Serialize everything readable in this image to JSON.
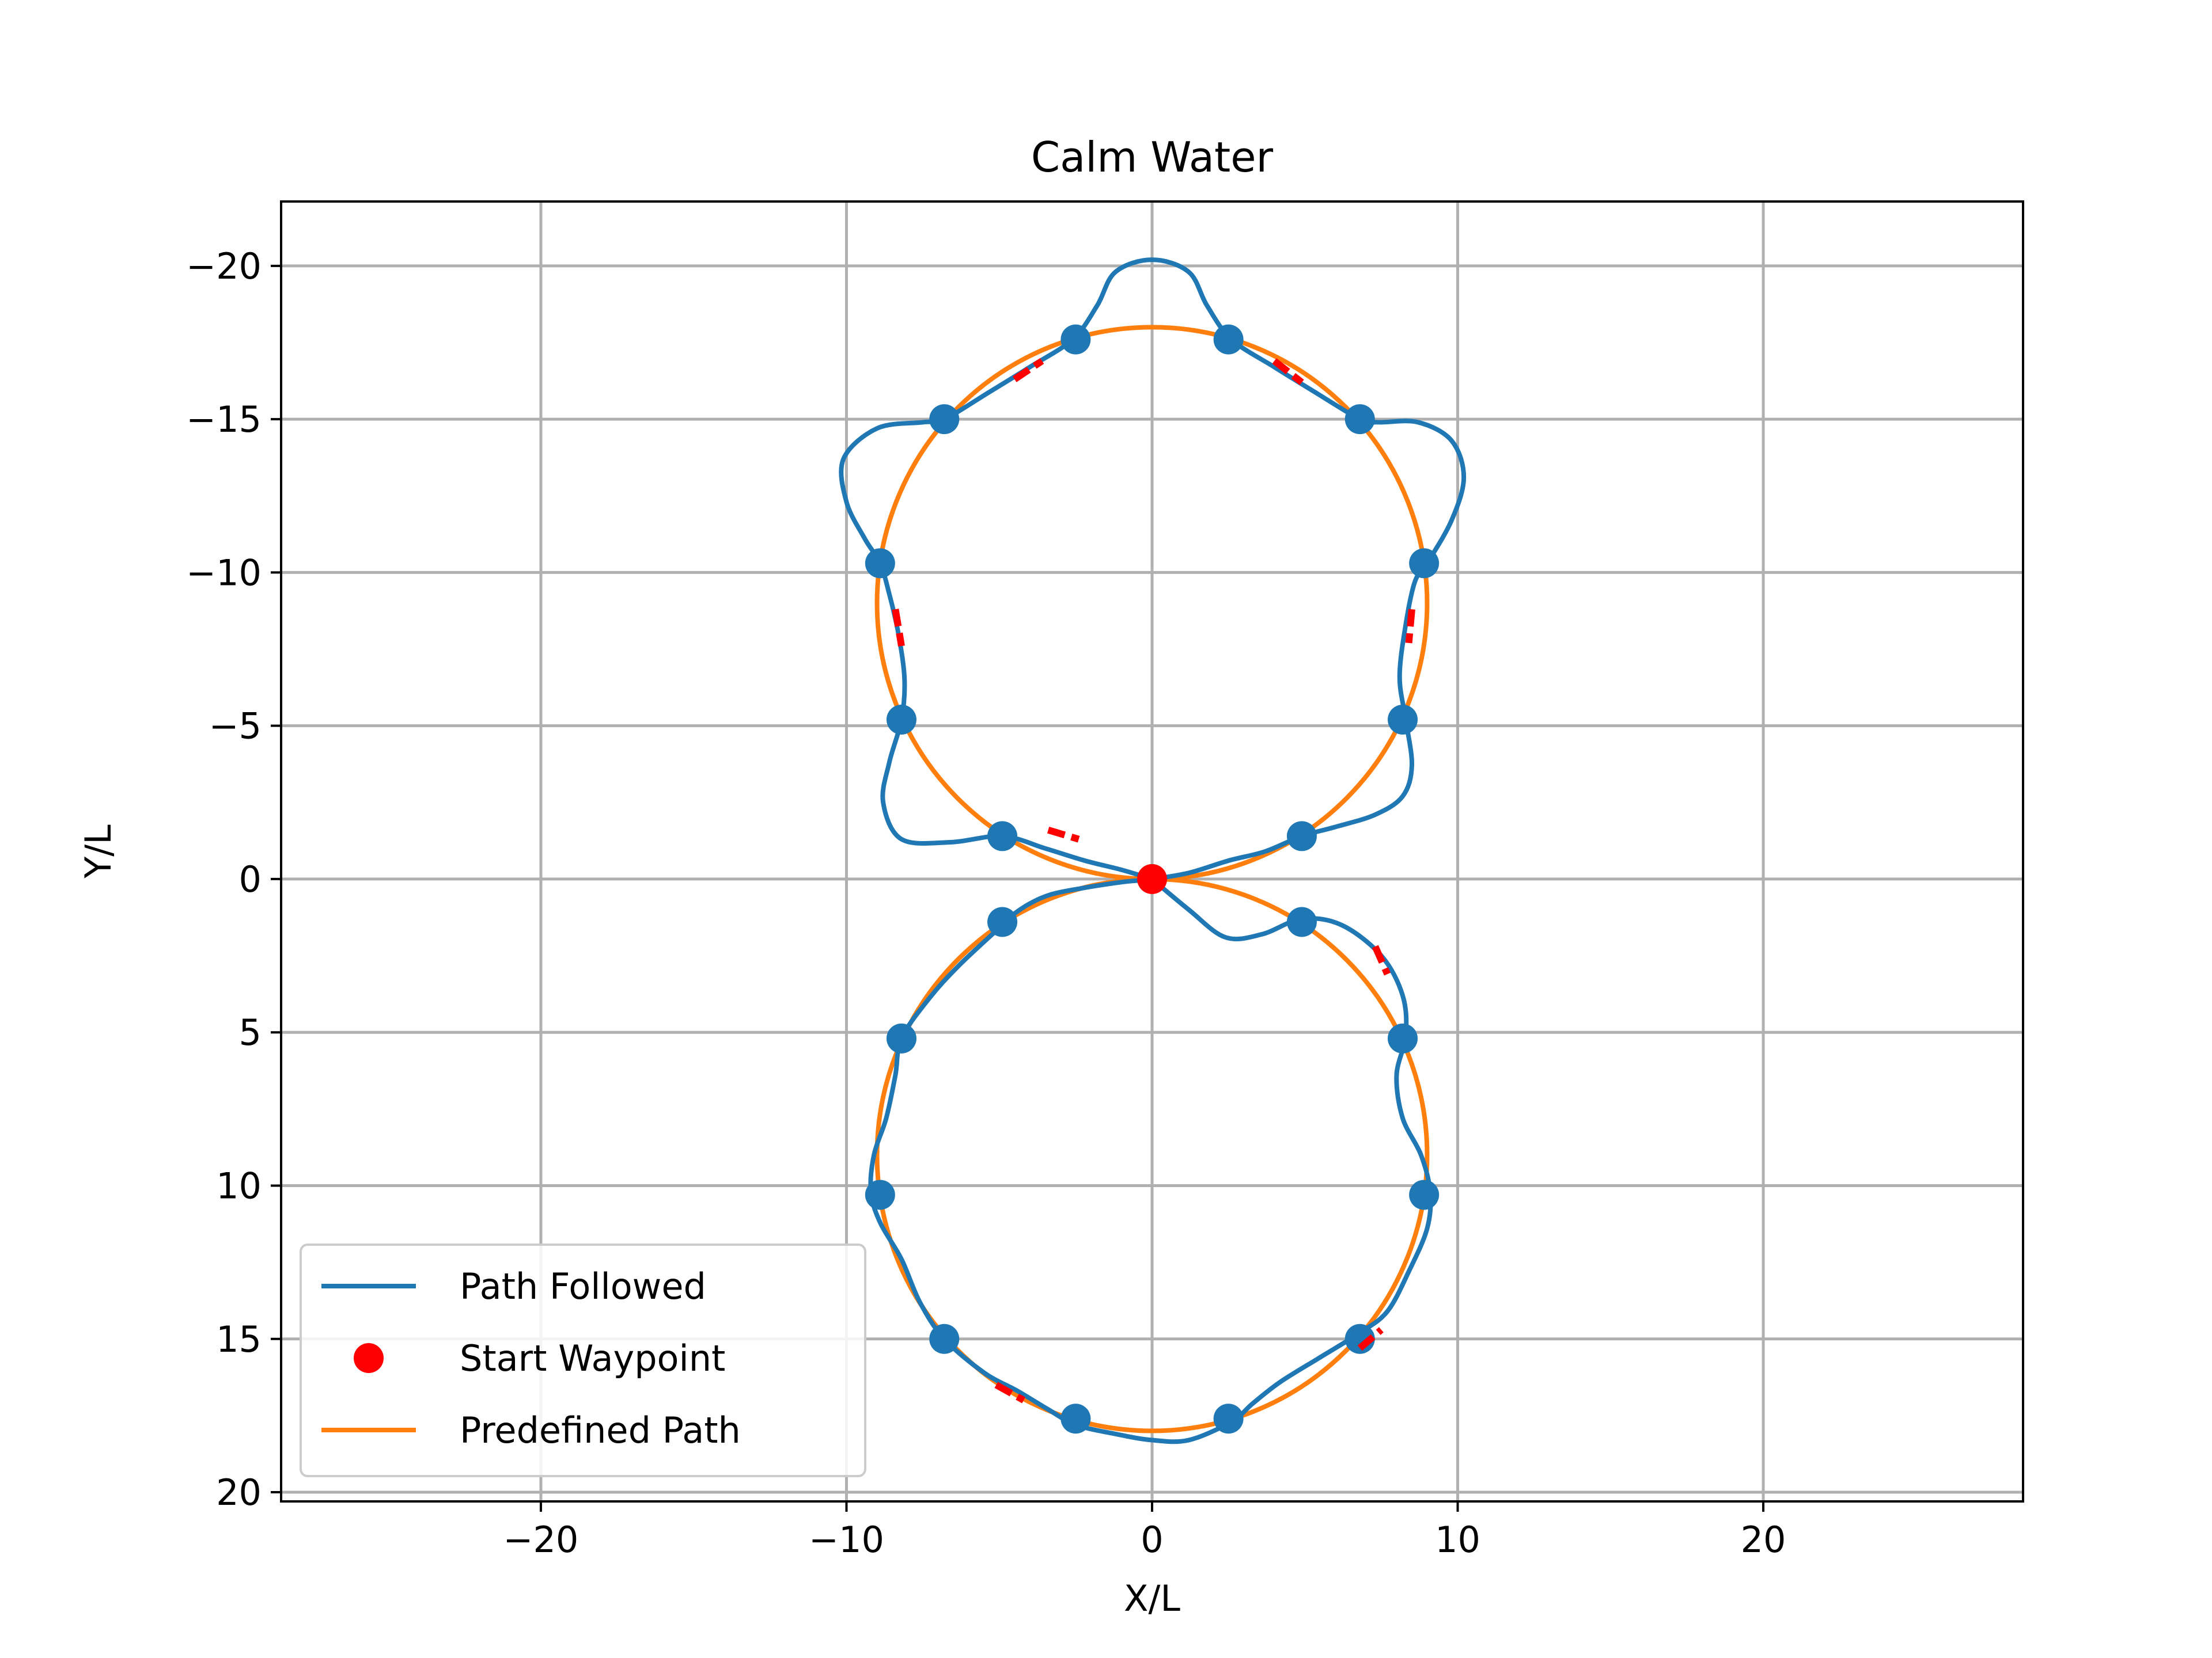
{
  "chart_data": {
    "type": "line",
    "title": "Calm Water",
    "xlabel": "X/L",
    "ylabel": "Y/L",
    "xlim": [
      -28.5,
      28.5
    ],
    "ylim": [
      -22.1,
      20.3
    ],
    "y_inverted": true,
    "aspect": "equal",
    "grid": true,
    "legend_position": "lower-left",
    "x_ticks": [
      -20,
      -10,
      0,
      10,
      20
    ],
    "x_tick_labels": [
      "−20",
      "−10",
      "0",
      "10",
      "20"
    ],
    "y_ticks": [
      -20,
      -15,
      -10,
      -5,
      0,
      5,
      10,
      15,
      20
    ],
    "y_tick_labels": [
      "−20",
      "−15",
      "−10",
      "−5",
      "0",
      "5",
      "10",
      "15",
      "20"
    ],
    "colors": {
      "path_followed": "#1f77b4",
      "predefined_path": "#ff7f0e",
      "start_waypoint": "#ff0000",
      "waypoints": "#1f77b4",
      "segment_marks": "#ff0000",
      "grid": "#b0b0b0"
    },
    "series": [
      {
        "name": "Path Followed",
        "kind": "line",
        "points": [
          [
            0,
            0
          ],
          [
            1.2,
            1.0
          ],
          [
            2.4,
            1.9
          ],
          [
            3.6,
            1.8
          ],
          [
            4.9,
            1.3
          ],
          [
            6.2,
            1.5
          ],
          [
            7.5,
            2.5
          ],
          [
            8.2,
            3.8
          ],
          [
            8.3,
            5.1
          ],
          [
            8.0,
            6.4
          ],
          [
            8.2,
            7.8
          ],
          [
            8.8,
            9.0
          ],
          [
            9.1,
            10.2
          ],
          [
            9.0,
            11.4
          ],
          [
            8.4,
            12.8
          ],
          [
            7.7,
            14.1
          ],
          [
            6.8,
            14.8
          ],
          [
            5.5,
            15.6
          ],
          [
            4.2,
            16.4
          ],
          [
            3.3,
            17.1
          ],
          [
            2.6,
            17.7
          ],
          [
            1.2,
            18.3
          ],
          [
            0.0,
            18.3
          ],
          [
            -1.2,
            18.1
          ],
          [
            -2.5,
            17.8
          ],
          [
            -3.4,
            17.3
          ],
          [
            -4.4,
            16.7
          ],
          [
            -5.5,
            16.1
          ],
          [
            -6.8,
            15.0
          ],
          [
            -7.6,
            13.8
          ],
          [
            -8.2,
            12.4
          ],
          [
            -8.9,
            11.2
          ],
          [
            -9.2,
            10.2
          ],
          [
            -9.1,
            9.0
          ],
          [
            -8.7,
            7.8
          ],
          [
            -8.4,
            6.4
          ],
          [
            -8.2,
            5.2
          ],
          [
            -7.3,
            3.9
          ],
          [
            -6.3,
            2.8
          ],
          [
            -4.9,
            1.5
          ],
          [
            -4.6,
            1.2
          ],
          [
            -4.0,
            0.8
          ],
          [
            -3.3,
            0.5
          ],
          [
            -2.3,
            0.3
          ],
          [
            -1.0,
            0.1
          ],
          [
            0,
            0
          ],
          [
            1.2,
            -0.2
          ],
          [
            2.5,
            -0.6
          ],
          [
            3.7,
            -0.9
          ],
          [
            4.9,
            -1.4
          ],
          [
            6.0,
            -1.7
          ],
          [
            7.3,
            -2.1
          ],
          [
            8.2,
            -2.7
          ],
          [
            8.5,
            -3.7
          ],
          [
            8.3,
            -5.2
          ],
          [
            8.1,
            -6.6
          ],
          [
            8.3,
            -8.3
          ],
          [
            8.6,
            -9.7
          ],
          [
            9.0,
            -10.3
          ],
          [
            9.8,
            -11.7
          ],
          [
            10.2,
            -13.1
          ],
          [
            9.8,
            -14.3
          ],
          [
            8.7,
            -14.9
          ],
          [
            7.4,
            -14.9
          ],
          [
            6.8,
            -15.0
          ],
          [
            5.3,
            -15.9
          ],
          [
            4.0,
            -16.7
          ],
          [
            2.6,
            -17.6
          ],
          [
            1.8,
            -18.7
          ],
          [
            1.2,
            -19.8
          ],
          [
            0.0,
            -20.2
          ],
          [
            -1.2,
            -19.8
          ],
          [
            -1.8,
            -18.7
          ],
          [
            -2.6,
            -17.6
          ],
          [
            -4.0,
            -16.7
          ],
          [
            -5.3,
            -15.9
          ],
          [
            -6.8,
            -15.0
          ],
          [
            -7.5,
            -14.9
          ],
          [
            -9.0,
            -14.7
          ],
          [
            -10.1,
            -13.7
          ],
          [
            -10.0,
            -12.3
          ],
          [
            -9.4,
            -11.1
          ],
          [
            -8.9,
            -10.3
          ],
          [
            -8.6,
            -9.3
          ],
          [
            -8.3,
            -8.0
          ],
          [
            -8.1,
            -6.5
          ],
          [
            -8.2,
            -5.2
          ],
          [
            -8.6,
            -3.8
          ],
          [
            -8.8,
            -2.5
          ],
          [
            -8.2,
            -1.3
          ],
          [
            -6.6,
            -1.2
          ],
          [
            -4.9,
            -1.4
          ],
          [
            -3.5,
            -1.0
          ],
          [
            -2.2,
            -0.6
          ],
          [
            -1.0,
            -0.3
          ],
          [
            0,
            0
          ]
        ]
      },
      {
        "name": "Predefined Path",
        "kind": "circles",
        "circles": [
          {
            "cx": 0,
            "cy": -9,
            "r": 9
          },
          {
            "cx": 0,
            "cy": 9,
            "r": 9
          }
        ]
      },
      {
        "name": "Start Waypoint",
        "kind": "marker",
        "points": [
          [
            0,
            0
          ]
        ]
      },
      {
        "name": "",
        "kind": "waypoints",
        "points": [
          [
            2.5,
            -17.6
          ],
          [
            6.8,
            -15.0
          ],
          [
            8.9,
            -10.3
          ],
          [
            8.2,
            -5.2
          ],
          [
            4.9,
            -1.4
          ],
          [
            -2.5,
            -17.6
          ],
          [
            -6.8,
            -15.0
          ],
          [
            -8.9,
            -10.3
          ],
          [
            -8.2,
            -5.2
          ],
          [
            -4.9,
            -1.4
          ],
          [
            4.9,
            1.4
          ],
          [
            8.2,
            5.2
          ],
          [
            8.9,
            10.3
          ],
          [
            6.8,
            15.0
          ],
          [
            2.5,
            17.6
          ],
          [
            -4.9,
            1.4
          ],
          [
            -8.2,
            5.2
          ],
          [
            -8.9,
            10.3
          ],
          [
            -6.8,
            15.0
          ],
          [
            -2.5,
            17.6
          ]
        ]
      },
      {
        "name": "",
        "kind": "segments",
        "segments": [
          [
            [
              -4.5,
              -16.3
            ],
            [
              -3.6,
              -16.9
            ]
          ],
          [
            [
              4.0,
              -16.9
            ],
            [
              4.9,
              -16.2
            ]
          ],
          [
            [
              -8.4,
              -8.8
            ],
            [
              -8.2,
              -7.6
            ]
          ],
          [
            [
              8.5,
              -8.8
            ],
            [
              8.4,
              -7.7
            ]
          ],
          [
            [
              -3.4,
              -1.6
            ],
            [
              -2.4,
              -1.3
            ]
          ],
          [
            [
              7.3,
              2.2
            ],
            [
              7.7,
              3.1
            ]
          ],
          [
            [
              -5.1,
              16.5
            ],
            [
              -4.2,
              17.0
            ]
          ],
          [
            [
              6.8,
              15.3
            ],
            [
              7.5,
              14.7
            ]
          ]
        ]
      }
    ],
    "legend": [
      {
        "label": "Path Followed",
        "style": "line",
        "color": "#1f77b4"
      },
      {
        "label": "Start Waypoint",
        "style": "dot",
        "color": "#ff0000"
      },
      {
        "label": "Predefined Path",
        "style": "line",
        "color": "#ff7f0e"
      }
    ]
  }
}
